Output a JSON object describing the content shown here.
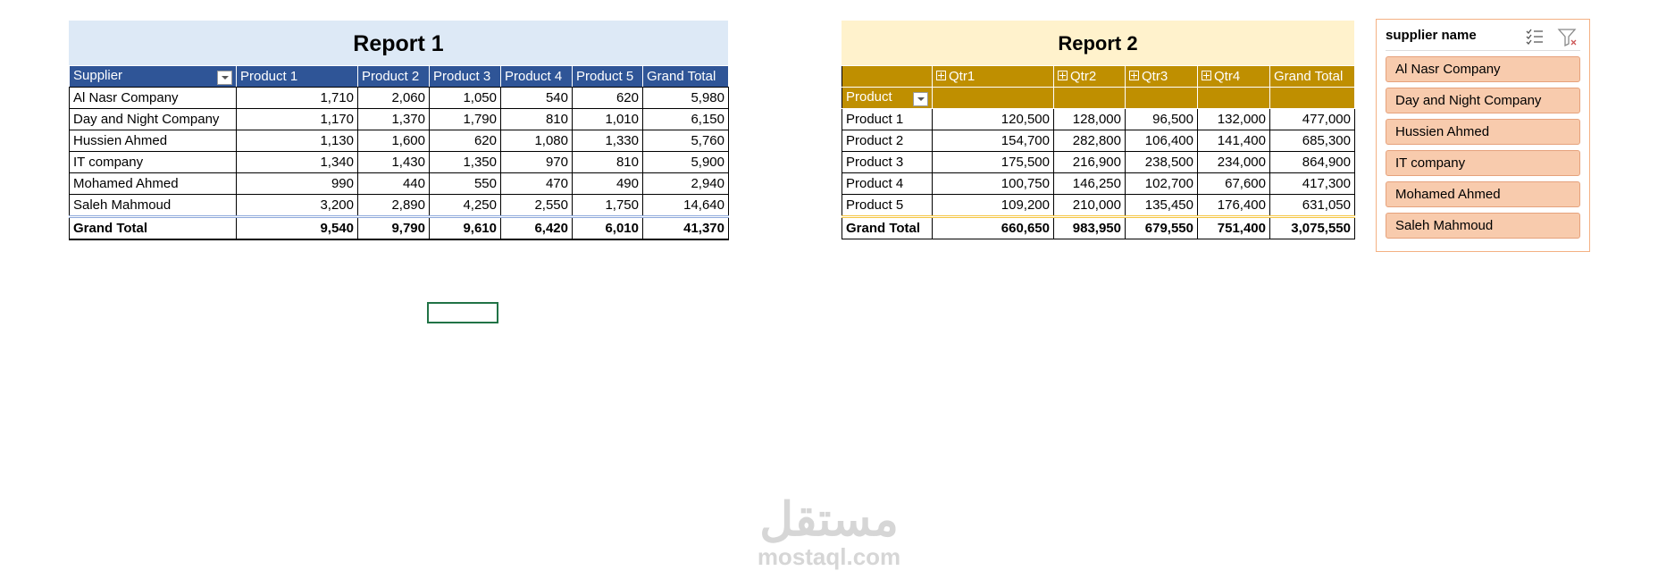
{
  "report1": {
    "title": "Report 1",
    "headers": [
      "Supplier",
      "Product 1",
      "Product 2",
      "Product 3",
      "Product 4",
      "Product 5",
      "Grand Total"
    ],
    "rows": [
      [
        "Al Nasr Company",
        "1,710",
        "2,060",
        "1,050",
        "540",
        "620",
        "5,980"
      ],
      [
        "Day and Night Company",
        "1,170",
        "1,370",
        "1,790",
        "810",
        "1,010",
        "6,150"
      ],
      [
        "Hussien Ahmed",
        "1,130",
        "1,600",
        "620",
        "1,080",
        "1,330",
        "5,760"
      ],
      [
        "IT company",
        "1,340",
        "1,430",
        "1,350",
        "970",
        "810",
        "5,900"
      ],
      [
        "Mohamed Ahmed",
        "990",
        "440",
        "550",
        "470",
        "490",
        "2,940"
      ],
      [
        "Saleh Mahmoud",
        "3,200",
        "2,890",
        "4,250",
        "2,550",
        "1,750",
        "14,640"
      ]
    ],
    "total": [
      "Grand Total",
      "9,540",
      "9,790",
      "9,610",
      "6,420",
      "6,010",
      "41,370"
    ]
  },
  "report2": {
    "title": "Report 2",
    "row_label": "Product",
    "headers": [
      "Qtr1",
      "Qtr2",
      "Qtr3",
      "Qtr4",
      "Grand Total"
    ],
    "rows": [
      [
        "Product 1",
        "120,500",
        "128,000",
        "96,500",
        "132,000",
        "477,000"
      ],
      [
        "Product 2",
        "154,700",
        "282,800",
        "106,400",
        "141,400",
        "685,300"
      ],
      [
        "Product 3",
        "175,500",
        "216,900",
        "238,500",
        "234,000",
        "864,900"
      ],
      [
        "Product 4",
        "100,750",
        "146,250",
        "102,700",
        "67,600",
        "417,300"
      ],
      [
        "Product 5",
        "109,200",
        "210,000",
        "135,450",
        "176,400",
        "631,050"
      ]
    ],
    "total": [
      "Grand Total",
      "660,650",
      "983,950",
      "679,550",
      "751,400",
      "3,075,550"
    ]
  },
  "slicer": {
    "title": "supplier name",
    "items": [
      "Al Nasr Company",
      "Day and Night Company",
      "Hussien Ahmed",
      "IT company",
      "Mohamed Ahmed",
      "Saleh Mahmoud"
    ]
  },
  "watermark": {
    "arabic": "مستقل",
    "latin": "mostaql.com"
  }
}
